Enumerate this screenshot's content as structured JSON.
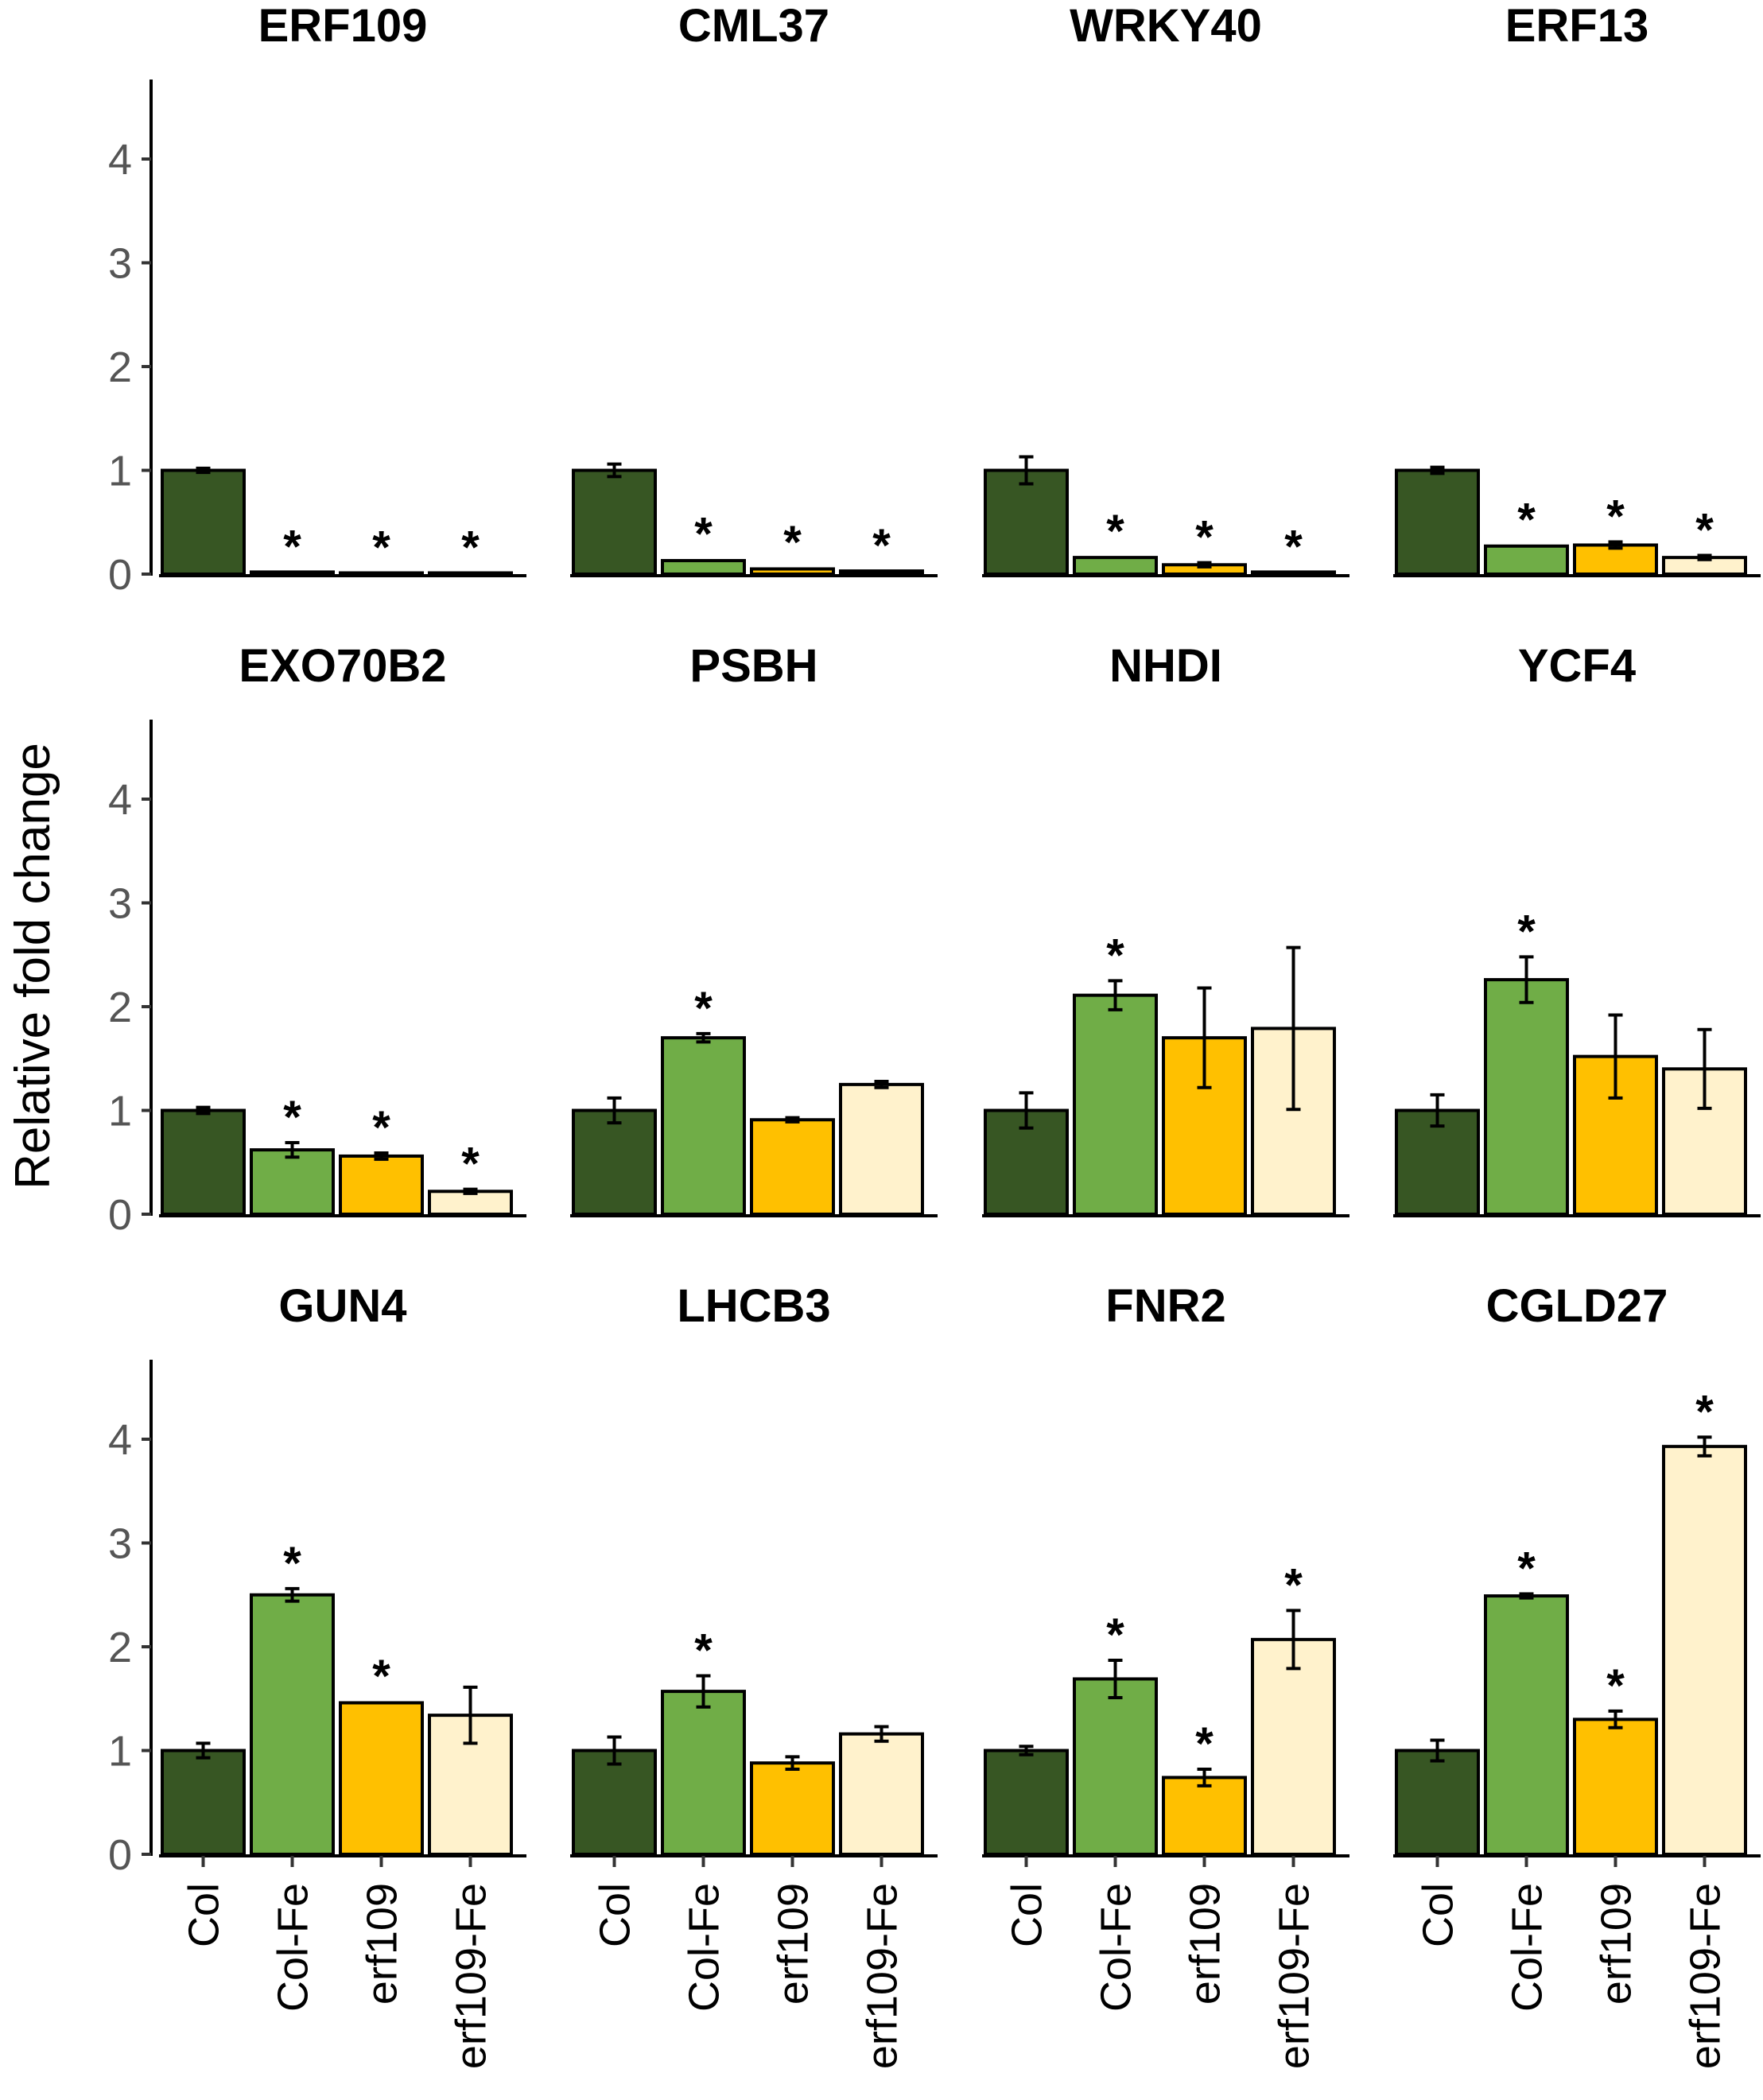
{
  "chart_data": {
    "type": "bar",
    "ylabel": "Relative fold change",
    "categories": [
      "Col",
      "Col-Fe",
      "erf109",
      "erf109-Fe"
    ],
    "category_colors": [
      "#375623",
      "#70AD47",
      "#FFC000",
      "#FFF2CC"
    ],
    "ylim": [
      0,
      4.8
    ],
    "yticks": [
      "0",
      "1",
      "2",
      "3",
      "4"
    ],
    "significance_marker": "*",
    "panels": [
      {
        "title": "ERF109",
        "values": [
          1.0,
          0.02,
          0.01,
          0.01
        ],
        "errors": [
          0.02,
          0.0,
          0.0,
          0.0
        ],
        "significant": [
          false,
          true,
          true,
          true
        ]
      },
      {
        "title": "CML37",
        "values": [
          1.0,
          0.13,
          0.05,
          0.03
        ],
        "errors": [
          0.06,
          0.01,
          0.01,
          0.0
        ],
        "significant": [
          false,
          true,
          true,
          true
        ]
      },
      {
        "title": "WRKY40",
        "values": [
          1.0,
          0.16,
          0.09,
          0.02
        ],
        "errors": [
          0.13,
          0.01,
          0.02,
          0.0
        ],
        "significant": [
          false,
          true,
          true,
          true
        ]
      },
      {
        "title": "ERF13",
        "values": [
          1.0,
          0.27,
          0.28,
          0.16
        ],
        "errors": [
          0.03,
          0.01,
          0.03,
          0.02
        ],
        "significant": [
          false,
          true,
          true,
          true
        ]
      },
      {
        "title": "EXO70B2",
        "values": [
          1.0,
          0.62,
          0.56,
          0.22
        ],
        "errors": [
          0.03,
          0.07,
          0.03,
          0.02
        ],
        "significant": [
          false,
          true,
          true,
          true
        ]
      },
      {
        "title": "PSBH",
        "values": [
          1.0,
          1.7,
          0.91,
          1.25
        ],
        "errors": [
          0.12,
          0.04,
          0.02,
          0.03
        ],
        "significant": [
          false,
          true,
          false,
          false
        ]
      },
      {
        "title": "NHDI",
        "values": [
          1.0,
          2.11,
          1.7,
          1.79
        ],
        "errors": [
          0.17,
          0.14,
          0.48,
          0.78
        ],
        "significant": [
          false,
          true,
          false,
          false
        ]
      },
      {
        "title": "YCF4",
        "values": [
          1.0,
          2.26,
          1.52,
          1.4
        ],
        "errors": [
          0.15,
          0.22,
          0.4,
          0.38
        ],
        "significant": [
          false,
          true,
          false,
          false
        ]
      },
      {
        "title": "GUN4",
        "values": [
          1.0,
          2.5,
          1.46,
          1.34
        ],
        "errors": [
          0.07,
          0.06,
          0.01,
          0.27
        ],
        "significant": [
          false,
          true,
          true,
          false
        ]
      },
      {
        "title": "LHCB3",
        "values": [
          1.0,
          1.57,
          0.88,
          1.16
        ],
        "errors": [
          0.13,
          0.15,
          0.06,
          0.07
        ],
        "significant": [
          false,
          true,
          false,
          false
        ]
      },
      {
        "title": "FNR2",
        "values": [
          1.0,
          1.69,
          0.74,
          2.07
        ],
        "errors": [
          0.04,
          0.18,
          0.08,
          0.28
        ],
        "significant": [
          false,
          true,
          true,
          true
        ]
      },
      {
        "title": "CGLD27",
        "values": [
          1.0,
          2.49,
          1.3,
          3.93
        ],
        "errors": [
          0.1,
          0.02,
          0.08,
          0.09
        ],
        "significant": [
          false,
          true,
          true,
          true
        ]
      }
    ]
  }
}
